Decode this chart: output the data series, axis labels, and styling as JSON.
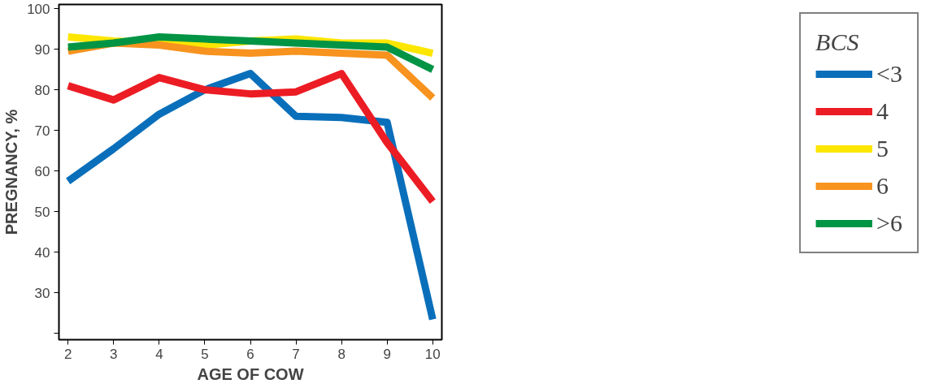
{
  "chart_data": {
    "type": "line",
    "xlabel": "AGE OF COW",
    "ylabel": "PREGNANCY, %",
    "legend_title": "BCS",
    "legend": "right",
    "grid": false,
    "marker": "none",
    "line_style": "solid",
    "x": [
      2,
      3,
      4,
      5,
      6,
      7,
      8,
      9,
      10
    ],
    "xlim": [
      1.8,
      10.2
    ],
    "xticks": [
      2,
      3,
      4,
      5,
      6,
      7,
      8,
      9,
      10
    ],
    "ylim": [
      18.5,
      101
    ],
    "yticks": [
      {
        "value": 20,
        "label": null
      },
      30,
      40,
      50,
      60,
      70,
      80,
      90,
      100
    ],
    "series": [
      {
        "name": "<3",
        "color": "#0a6fba",
        "values": [
          57.5,
          65.5,
          74,
          80,
          84,
          73.5,
          73.2,
          72,
          23.5
        ]
      },
      {
        "name": "4",
        "color": "#ec1c24",
        "values": [
          81,
          77.5,
          83,
          80,
          79,
          79.5,
          84,
          67,
          52.5
        ]
      },
      {
        "name": "5",
        "color": "#fde600",
        "values": [
          93,
          92,
          91.5,
          91,
          92,
          92.5,
          91.5,
          91.5,
          89
        ]
      },
      {
        "name": "6",
        "color": "#f7931e",
        "values": [
          89.5,
          91.5,
          91,
          89.5,
          89,
          89.5,
          89,
          88.5,
          78
        ]
      },
      {
        "name": ">6",
        "color": "#009444",
        "values": [
          90.5,
          91.5,
          93,
          92.5,
          92,
          91.5,
          91,
          90.5,
          85
        ]
      }
    ]
  }
}
